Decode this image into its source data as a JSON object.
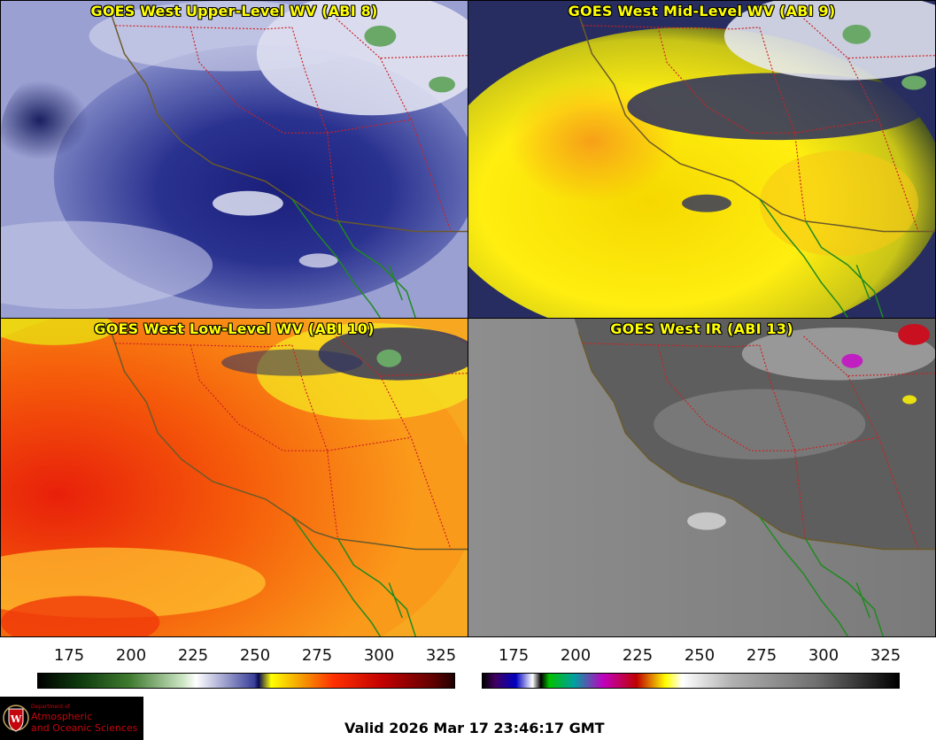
{
  "panels": [
    {
      "id": "upper",
      "title": "GOES West Upper-Level WV (ABI 8)"
    },
    {
      "id": "mid",
      "title": "GOES West Mid-Level WV (ABI 9)"
    },
    {
      "id": "low",
      "title": "GOES West Low-Level WV (ABI 10)"
    },
    {
      "id": "ir",
      "title": "GOES West IR (ABI 13)"
    }
  ],
  "colorbars": [
    {
      "id": "wv",
      "ticks": [
        "175",
        "200",
        "225",
        "250",
        "275",
        "300",
        "325"
      ]
    },
    {
      "id": "ir",
      "ticks": [
        "175",
        "200",
        "225",
        "250",
        "275",
        "300",
        "325"
      ]
    }
  ],
  "logo": {
    "dept": "Department of",
    "line1": "Atmospheric",
    "line2": "and Oceanic Sciences"
  },
  "valid_time": "Valid 2026 Mar 17 23:46:17 GMT",
  "colors": {
    "title_text": "#ffff00",
    "state_borders": "#cc2222",
    "coastline": "#6b5a2a",
    "mexico_coast": "#1f8a1f"
  }
}
